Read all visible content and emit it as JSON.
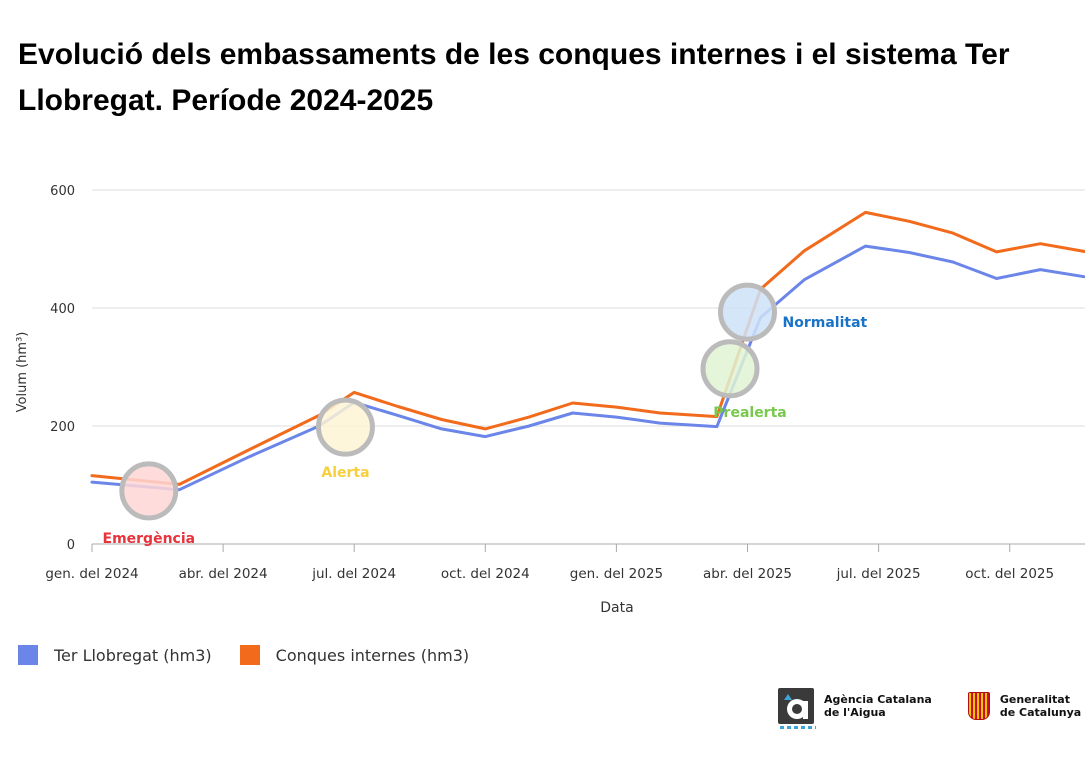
{
  "title": "Evolució dels embassaments de les conques internes i el sistema Ter Llobregat. Període 2024-2025",
  "chart_data": {
    "type": "line",
    "xlabel": "Data",
    "ylabel": "Volum (hm³)",
    "ylim": [
      0,
      600
    ],
    "yticks": [
      0,
      200,
      400,
      600
    ],
    "x_tick_labels": [
      "gen. del 2024",
      "abr. del 2024",
      "jul. del 2024",
      "oct. del 2024",
      "gen. del 2025",
      "abr. del 2025",
      "jul. del 2025",
      "oct. del 2025"
    ],
    "x_months": [
      0,
      1.3,
      2.3,
      3.3,
      4.3,
      5.3,
      6.3,
      7.3,
      8.3,
      9.3,
      10.3,
      11.3,
      12.3,
      13.3,
      14.3,
      14.7,
      15.5,
      16.5,
      17.5,
      18.5,
      19.5,
      20.5,
      21.5
    ],
    "series": [
      {
        "name": "Ter Llobregat (hm3)",
        "color": "#6b85e8",
        "values": [
          105,
          92,
          148,
          200,
          240,
          218,
          195,
          182,
          200,
          222,
          215,
          205,
          199,
          384,
          448,
          505,
          494,
          478,
          450,
          465,
          453
        ]
      },
      {
        "name": "Conques internes (hm3)",
        "color": "#f26a1b",
        "values": [
          116,
          101,
          160,
          218,
          257,
          233,
          211,
          195,
          215,
          239,
          232,
          222,
          216,
          432,
          497,
          562,
          547,
          527,
          495,
          509,
          496
        ]
      }
    ],
    "series_x": [
      0,
      2,
      3.6,
      5.2,
      6,
      7,
      8,
      9,
      10,
      11,
      12,
      13,
      14.3,
      15.3,
      16.3,
      17.7,
      18.7,
      19.7,
      20.7,
      21.7,
      22.7
    ],
    "annotations": [
      {
        "label": "Emergència",
        "month": 1.3,
        "value": 90,
        "fill": "#ffd6d6",
        "text_color": "#e8333c"
      },
      {
        "label": "Alerta",
        "month": 5.8,
        "value": 198,
        "fill": "#fdf5d3",
        "text_color": "#f6cf3c"
      },
      {
        "label": "Prealerta",
        "month": 14.6,
        "value": 297,
        "fill": "#dff3d4",
        "text_color": "#78c84e"
      },
      {
        "label": "Normalitat",
        "month": 15.0,
        "value": 393,
        "fill": "#cfe2f8",
        "text_color": "#1a73c6"
      }
    ]
  },
  "legend": [
    {
      "label": "Ter Llobregat (hm3)",
      "color": "#6b85e8"
    },
    {
      "label": "Conques internes (hm3)",
      "color": "#f26a1b"
    }
  ],
  "logos": {
    "acs_line1": "Agència Catalana",
    "acs_line2": "de l'Aigua",
    "gen_line1": "Generalitat",
    "gen_line2": "de Catalunya"
  }
}
